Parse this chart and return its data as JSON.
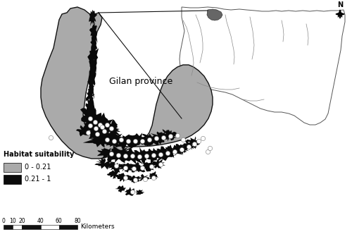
{
  "background_color": "#ffffff",
  "province_label": "Gilan province",
  "legend_title": "Habitat suitability",
  "legend_items": [
    {
      "label": "0 - 0.21",
      "color": "#aaaaaa"
    },
    {
      "label": "0.21 - 1",
      "color": "#0a0a0a"
    }
  ],
  "scale_bar_label": "Kilometers",
  "scale_bar_ticks": [
    0,
    10,
    20,
    40,
    60,
    80
  ],
  "white_dot_color": "#ffffff",
  "province_border_color": "#111111",
  "province_fill": "#aaaaaa",
  "high_suit_color": "#0a0a0a",
  "inset_border_color": "#333333",
  "inset_bg": "#ffffff",
  "inset_lines_color": "#888888"
}
